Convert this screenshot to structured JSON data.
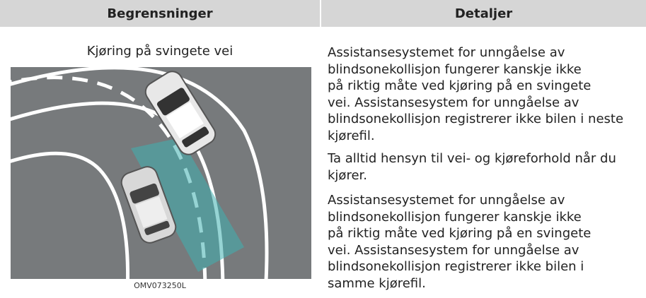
{
  "header": {
    "left": "Begrensninger",
    "right": "Detaljer"
  },
  "left_cell": {
    "title": "Kjøring på svingete vei",
    "image_caption": "OMV073250L"
  },
  "right_cell": {
    "paragraphs": [
      {
        "lines": [
          "Assistansesystemet for unngåelse av",
          "blindsonekollisjon fungerer kanskje ikke",
          "på riktig måte ved kjøring på en svingete",
          "vei. Assistansesystem for unngåelse av",
          "blindsonekollisjon registrerer ikke bilen i neste",
          "kjørefil."
        ]
      },
      {
        "lines": [
          "Ta alltid hensyn til vei- og kjøreforhold når du",
          "kjører."
        ]
      },
      {
        "lines": [
          "Assistansesystemet for unngåelse av",
          "blindsonekollisjon fungerer kanskje ikke",
          "på riktig måte ved kjøring på en svingete",
          "vei. Assistansesystem for unngåelse av",
          "blindsonekollisjon registrerer ikke bilen i",
          "samme kjørefil."
        ]
      }
    ]
  }
}
